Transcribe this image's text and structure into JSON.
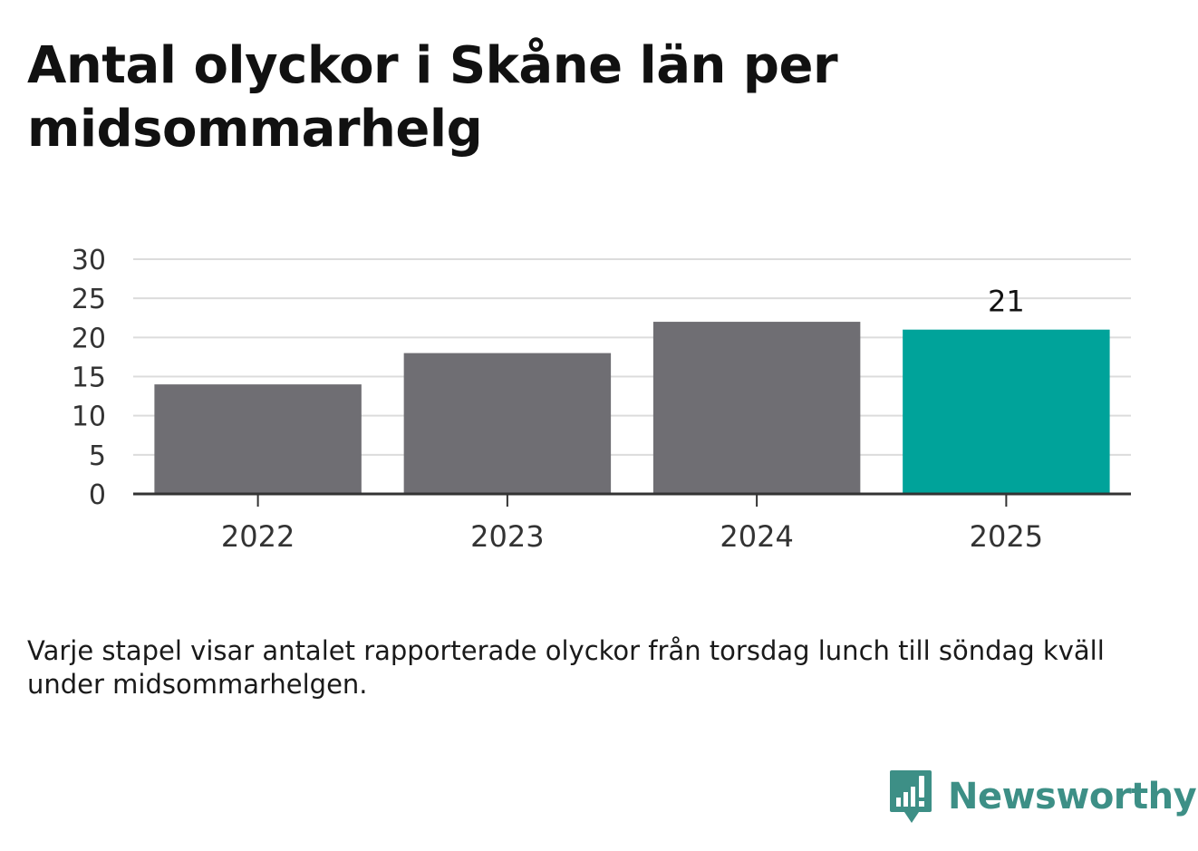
{
  "title": "Antal olyckor i Skåne län per midsommarhelg",
  "note": "Varje stapel visar antalet rapporterade olyckor från torsdag lunch till söndag kväll under midsommarhelgen.",
  "brand": {
    "name": "Newsworthy",
    "color": "#3d8f86",
    "icon": "chat-bubble-bar-chart-icon"
  },
  "colors": {
    "bar": "#6f6e73",
    "highlight": "#00a39a",
    "grid": "#dcdcdc",
    "axis": "#333333",
    "tick_text": "#333333"
  },
  "chart_data": {
    "type": "bar",
    "title": "Antal olyckor i Skåne län per midsommarhelg",
    "xlabel": "",
    "ylabel": "",
    "categories": [
      "2022",
      "2023",
      "2024",
      "2025"
    ],
    "values": [
      14,
      18,
      22,
      21
    ],
    "ylim": [
      0,
      30
    ],
    "yticks": [
      0,
      5,
      10,
      15,
      20,
      25,
      30
    ],
    "highlight_index": 3,
    "data_labels": [
      {
        "index": 3,
        "text": "21"
      }
    ],
    "grid": true,
    "legend": "none"
  }
}
